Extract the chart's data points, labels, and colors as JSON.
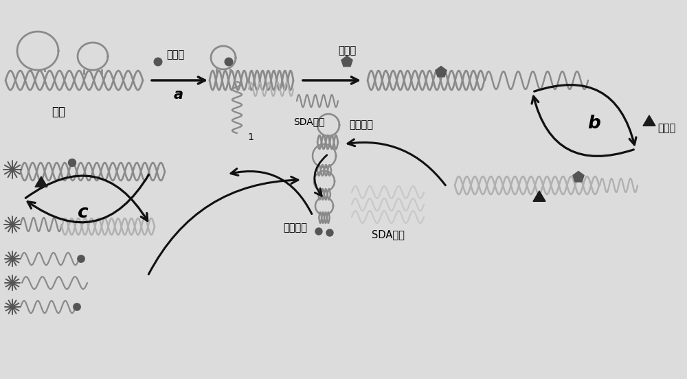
{
  "bg_color": "#dcdcdc",
  "dna_color": "#8a8a8a",
  "dna_dark": "#555555",
  "dna_light": "#b0b0b0",
  "dna_very_light": "#c8c8c8",
  "arrow_color": "#111111",
  "label_a": "a",
  "label_b": "b",
  "label_c": "c",
  "text_lead": "铅离子",
  "text_polymerase": "聚合酶",
  "text_ribozyme": "核酶",
  "text_sda_template": "SDA模板",
  "text_hairpin": "发卡结构",
  "text_molecular_beacon": "分子信标",
  "text_sda_product": "SDA产物",
  "text_nicking": "切口酶",
  "text_1": "1",
  "figsize": [
    10.0,
    5.52
  ],
  "dpi": 100
}
